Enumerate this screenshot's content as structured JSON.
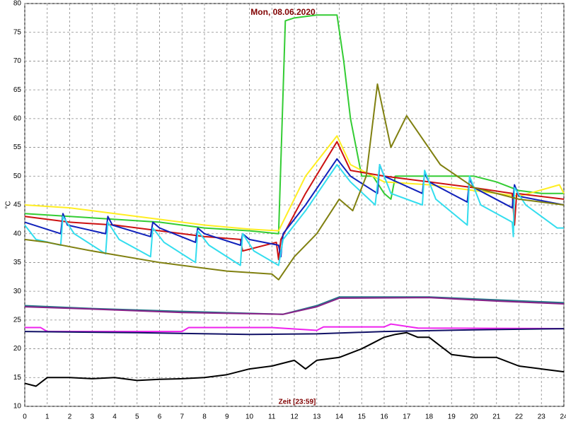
{
  "chart_data": {
    "type": "line",
    "title": "Mon, 08.06.2020",
    "x_label": "Zeit [23:59]",
    "y_label": "°C",
    "xlim": [
      0,
      24
    ],
    "ylim": [
      10,
      80
    ],
    "xticks": [
      0,
      1,
      2,
      3,
      4,
      5,
      6,
      7,
      8,
      9,
      10,
      11,
      12,
      13,
      14,
      15,
      16,
      17,
      18,
      19,
      20,
      21,
      22,
      23,
      24
    ],
    "yticks": [
      10,
      15,
      20,
      25,
      30,
      35,
      40,
      45,
      50,
      55,
      60,
      65,
      70,
      75,
      80
    ],
    "grid": true,
    "series": [
      {
        "color": "#33cc33",
        "x": [
          0,
          2,
          4,
          6,
          8,
          10,
          11.3,
          11.6,
          12,
          13,
          13.9,
          14.2,
          14.5,
          15,
          15.5,
          16,
          16.3,
          16.5,
          17,
          18,
          20,
          21,
          22,
          23,
          24
        ],
        "values": [
          43.5,
          43,
          42.5,
          42,
          41,
          40.5,
          40,
          77,
          77.5,
          78,
          78,
          70,
          60,
          50,
          50,
          47,
          46,
          50,
          50,
          50,
          50,
          49,
          47.5,
          47,
          47
        ]
      },
      {
        "color": "#ffee22",
        "x": [
          0,
          2,
          4,
          6,
          8,
          10,
          11.3,
          12.5,
          13.9,
          14.5,
          16,
          18,
          20,
          22,
          23.8,
          24
        ],
        "values": [
          45,
          44.5,
          43.5,
          42.5,
          41.5,
          40.8,
          40.5,
          50,
          57,
          52,
          49,
          48.5,
          47.5,
          46.5,
          48.5,
          47
        ]
      },
      {
        "color": "#cc1111",
        "x": [
          0,
          2,
          4,
          6,
          8,
          9.6,
          9.7,
          11.2,
          11.3,
          11.4,
          12.5,
          13.9,
          14.5,
          16,
          18,
          20,
          21.7,
          21.8,
          21.9,
          24
        ],
        "values": [
          43,
          42,
          41.5,
          40.5,
          39.5,
          39,
          37,
          38.5,
          35.5,
          39,
          47,
          56,
          51,
          50,
          49,
          48,
          47,
          41.5,
          47,
          46
        ]
      },
      {
        "color": "#1122bb",
        "x": [
          0,
          1.6,
          1.7,
          1.9,
          3.6,
          3.7,
          3.9,
          5.6,
          5.7,
          6,
          7.6,
          7.7,
          8,
          9.6,
          9.7,
          10,
          11.3,
          11.4,
          11.5,
          12.5,
          13.9,
          14.5,
          15.7,
          15.8,
          16,
          17.7,
          17.8,
          18,
          19.7,
          19.8,
          20,
          21.7,
          21.8,
          22,
          24
        ],
        "values": [
          42,
          40,
          43.5,
          41.5,
          40,
          43,
          41.5,
          39.5,
          42,
          41,
          38.5,
          41,
          40,
          38,
          40,
          39,
          38,
          36,
          40,
          45,
          53,
          50,
          47,
          52,
          50,
          47,
          50.5,
          49,
          45.5,
          49.5,
          48,
          44.5,
          48.5,
          46.5,
          45
        ]
      },
      {
        "color": "#33ddee",
        "x": [
          0,
          0.5,
          1.6,
          1.7,
          2.2,
          3.6,
          3.7,
          4.2,
          5.6,
          5.7,
          6.2,
          7.6,
          7.7,
          8.2,
          9.6,
          9.7,
          10.2,
          11.3,
          11.5,
          12.5,
          13.9,
          14.5,
          15.6,
          15.8,
          16.3,
          17.7,
          17.8,
          18.3,
          19.7,
          19.8,
          20.3,
          21.7,
          21.75,
          21.8,
          22.3,
          23.7,
          24
        ],
        "values": [
          41.5,
          39,
          38,
          43,
          40,
          36.5,
          42,
          39,
          36,
          41,
          38.5,
          35,
          40.5,
          38,
          34.5,
          40,
          37,
          34.5,
          39,
          44,
          52,
          49,
          45,
          52,
          47,
          45,
          51,
          46,
          41.5,
          50,
          45,
          42,
          39.5,
          48,
          45,
          41,
          41
        ]
      },
      {
        "color": "#808010",
        "x": [
          0,
          1,
          3,
          6,
          9,
          11,
          11.3,
          12,
          13,
          14,
          14.6,
          15.2,
          15.7,
          16.3,
          17,
          18.5,
          20,
          22,
          24
        ],
        "values": [
          39,
          38.5,
          37,
          35,
          33.5,
          33,
          32,
          36,
          40,
          46,
          44,
          50,
          66,
          55,
          60.5,
          52,
          48,
          46,
          45
        ]
      },
      {
        "color": "#227788",
        "x": [
          0,
          3,
          7,
          11.5,
          13,
          14,
          18,
          21,
          24
        ],
        "values": [
          27.5,
          27,
          26.5,
          26,
          27.5,
          29,
          29,
          28.5,
          28
        ]
      },
      {
        "color": "#882288",
        "x": [
          0,
          3,
          7,
          11.5,
          13,
          14,
          18,
          21,
          24
        ],
        "values": [
          27.3,
          26.9,
          26.3,
          26,
          27.3,
          28.8,
          28.9,
          28.3,
          27.8
        ]
      },
      {
        "color": "#ee22ee",
        "x": [
          0,
          0.7,
          1,
          7,
          7.3,
          11,
          13,
          13.3,
          16,
          16.3,
          17.5,
          24
        ],
        "values": [
          23.7,
          23.7,
          23,
          23,
          23.7,
          23.7,
          23.2,
          23.8,
          23.8,
          24.3,
          23.6,
          23.5
        ]
      },
      {
        "color": "#111166",
        "x": [
          0,
          5,
          10,
          13,
          16,
          20,
          24
        ],
        "values": [
          23,
          22.8,
          22.5,
          22.6,
          23,
          23.3,
          23.5
        ]
      },
      {
        "color": "#000000",
        "x": [
          0,
          0.5,
          1,
          2,
          3,
          4,
          5,
          6,
          7,
          8,
          9,
          10,
          11,
          12,
          12.5,
          13,
          14,
          15,
          15.5,
          16,
          16.5,
          17,
          17.5,
          18,
          19,
          20,
          21,
          22,
          23,
          24
        ],
        "values": [
          14,
          13.5,
          15,
          15,
          14.8,
          15,
          14.5,
          14.7,
          14.8,
          15,
          15.5,
          16.5,
          17,
          18,
          16.5,
          18,
          18.5,
          20,
          21,
          22,
          22.5,
          22.8,
          22,
          22,
          19,
          18.5,
          18.5,
          17,
          16.5,
          16
        ]
      }
    ]
  }
}
